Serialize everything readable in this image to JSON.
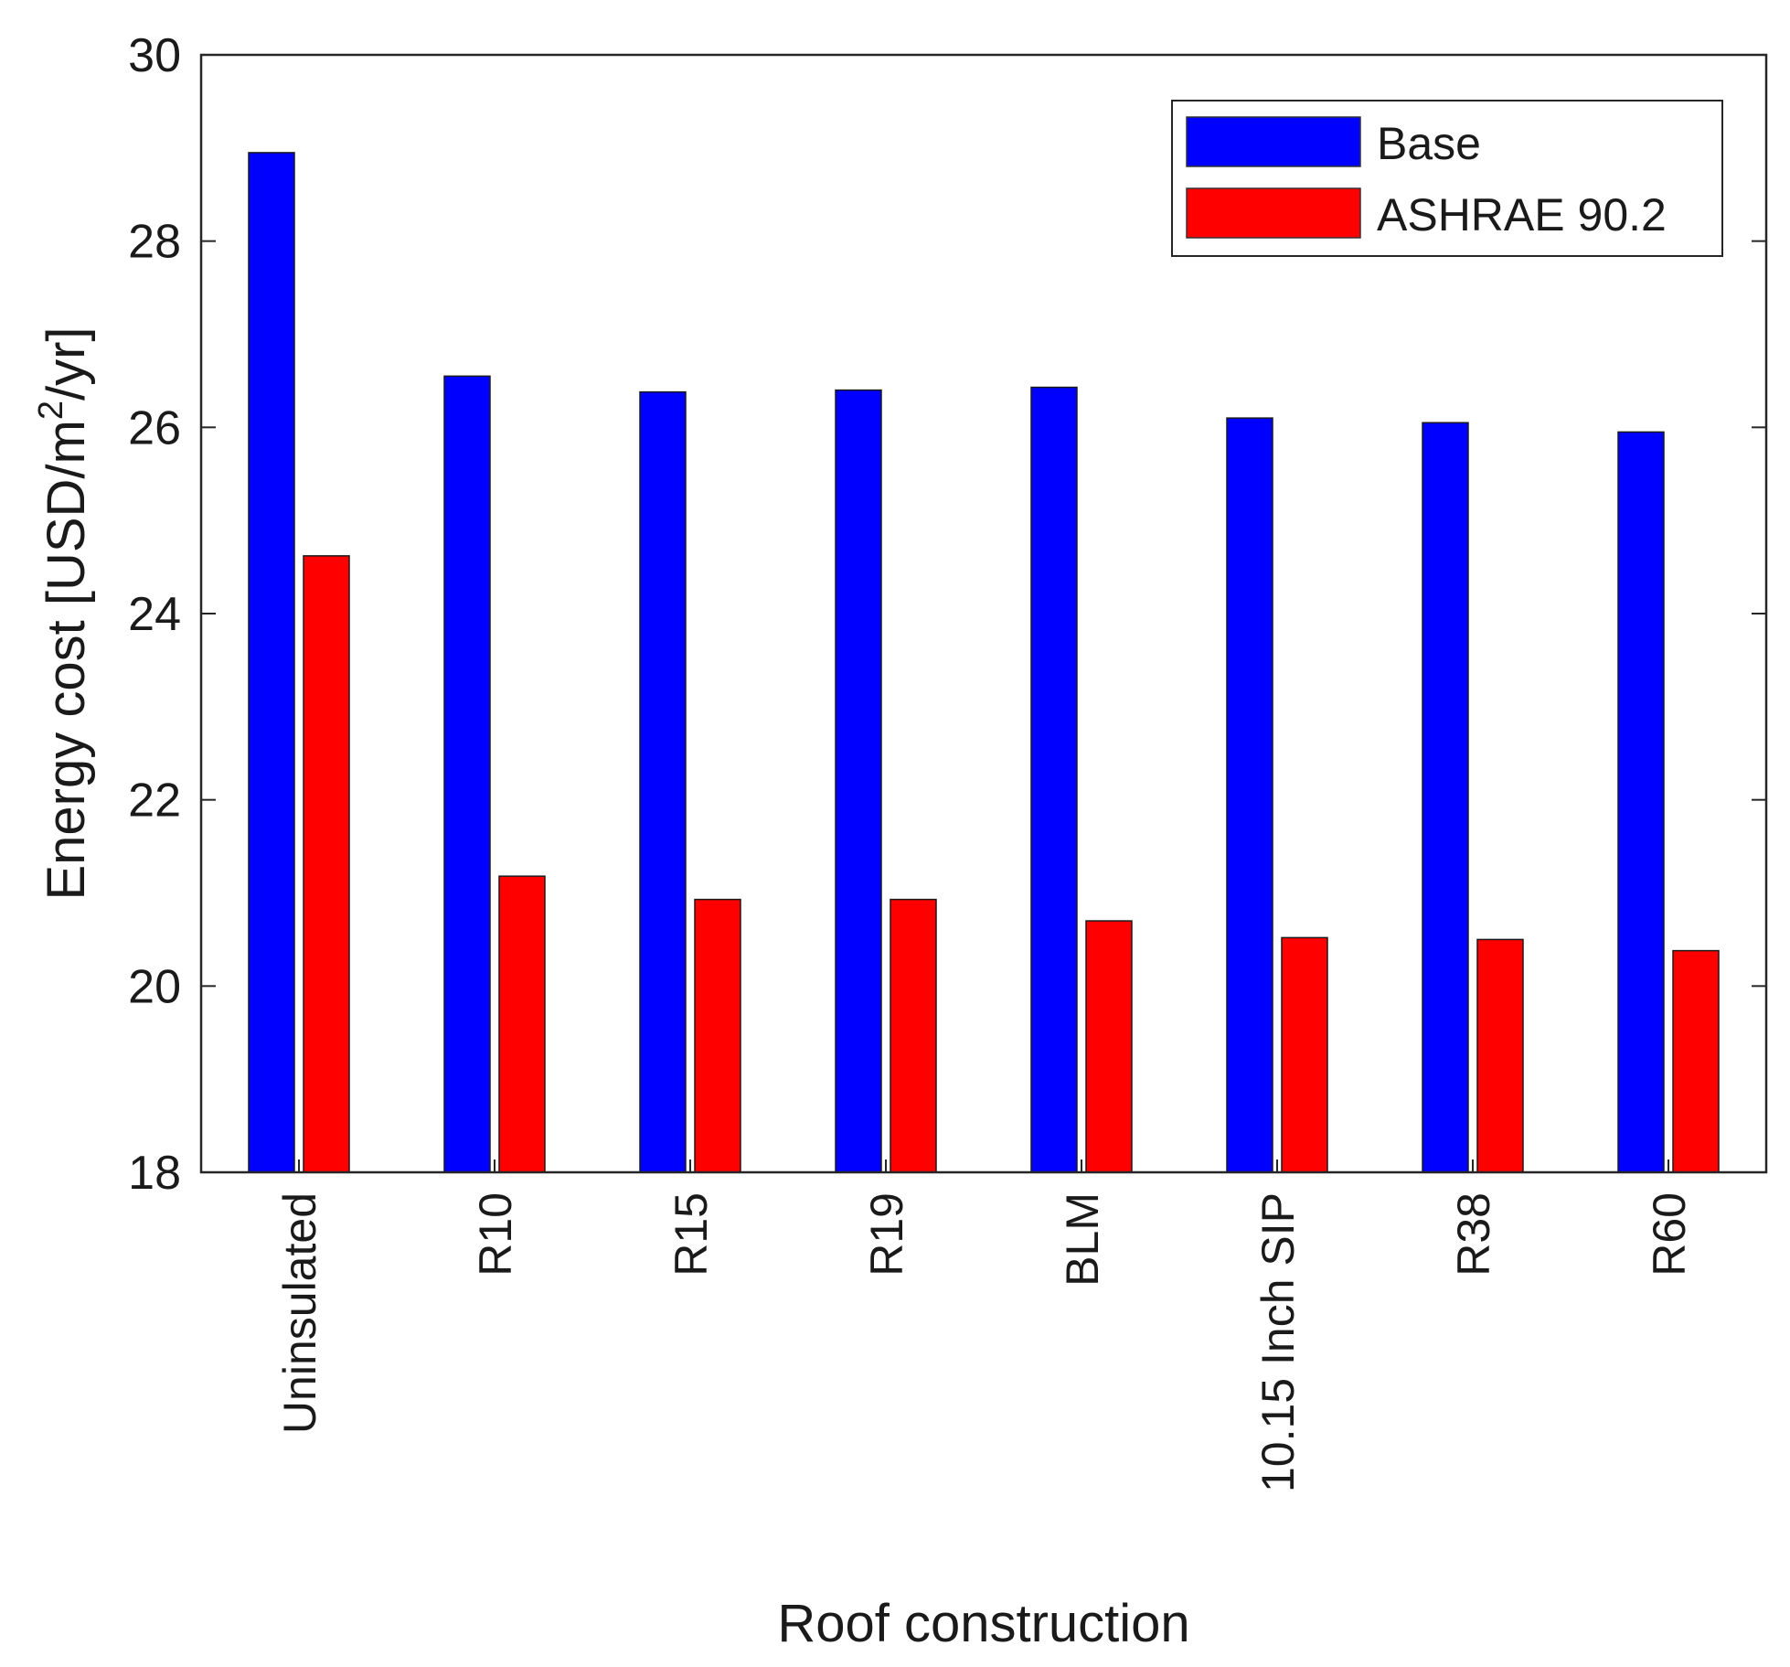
{
  "chart_data": {
    "type": "bar",
    "title": "",
    "xlabel": "Roof construction",
    "ylabel": {
      "prefix": "Energy cost [USD/m",
      "superscript": "2",
      "suffix": "/yr]"
    },
    "ylim": [
      18,
      30
    ],
    "yticks": [
      "18",
      "20",
      "22",
      "24",
      "26",
      "28",
      "30"
    ],
    "categories": [
      "Uninsulated",
      "R10",
      "R15",
      "R19",
      "BLM",
      "10.15 Inch SIP",
      "R38",
      "R60"
    ],
    "series": [
      {
        "name": "Base",
        "color": "#0000ff",
        "values": [
          28.95,
          26.55,
          26.38,
          26.4,
          26.43,
          26.1,
          26.05,
          25.95
        ]
      },
      {
        "name": "ASHRAE 90.2",
        "color": "#ff0000",
        "values": [
          24.62,
          21.18,
          20.93,
          20.93,
          20.7,
          20.52,
          20.5,
          20.38
        ]
      }
    ],
    "legend_position": "top-right",
    "grid": false
  }
}
